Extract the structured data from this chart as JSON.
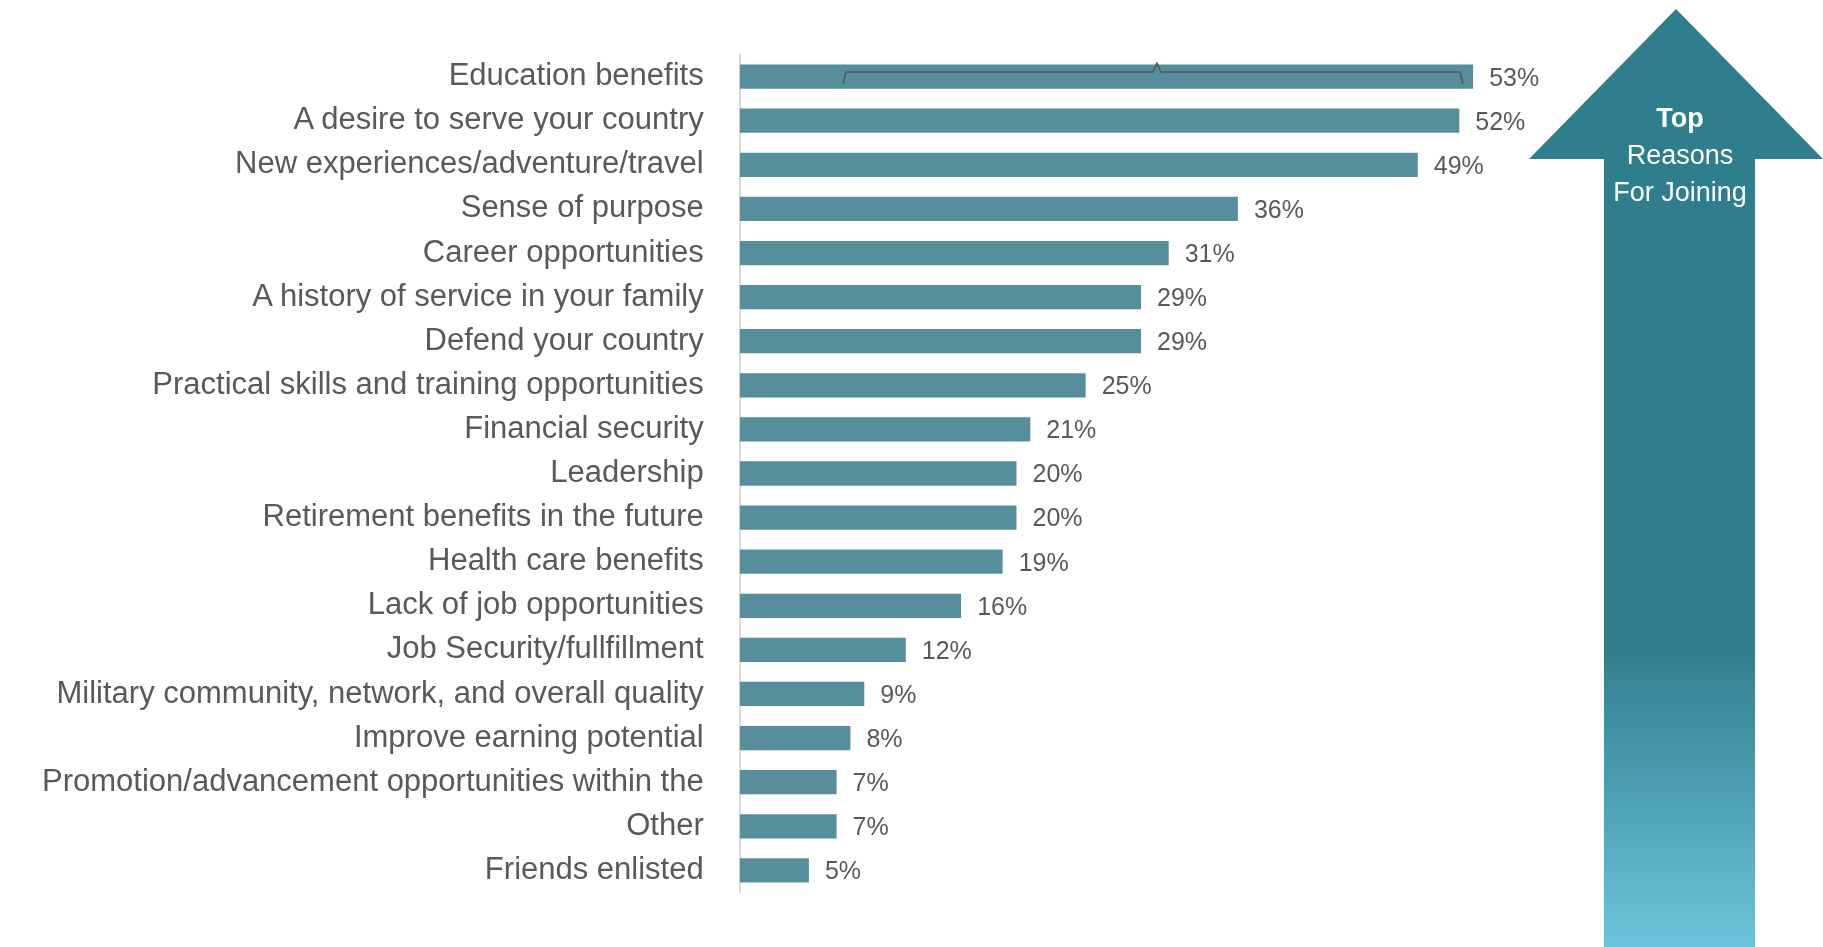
{
  "chart_data": {
    "type": "bar",
    "orientation": "horizontal",
    "categories": [
      "Education benefits",
      "A desire to serve your country",
      "New experiences/adventure/travel",
      "Sense of purpose",
      "Career opportunities",
      "A history of service in your family",
      "Defend your country",
      "Practical skills and training opportunities",
      "Financial security",
      "Leadership",
      "Retirement benefits in the future",
      "Health care benefits",
      "Lack of job opportunities",
      "Job Security/fullfillment",
      "Military community, network, and overall quality",
      "Improve earning potential",
      "Promotion/advancement opportunities within the",
      "Other",
      "Friends enlisted"
    ],
    "values": [
      53,
      52,
      49,
      36,
      31,
      29,
      29,
      25,
      21,
      20,
      20,
      19,
      16,
      12,
      9,
      8,
      7,
      7,
      5
    ],
    "value_labels": [
      "53%",
      "52%",
      "49%",
      "36%",
      "31%",
      "29%",
      "29%",
      "25%",
      "21%",
      "20%",
      "20%",
      "19%",
      "16%",
      "12%",
      "9%",
      "8%",
      "7%",
      "7%",
      "5%"
    ],
    "color": "#568f9b",
    "tick_labels": "y",
    "legend": false,
    "annotations": [
      "Top",
      "Reasons For Joining"
    ]
  }
}
